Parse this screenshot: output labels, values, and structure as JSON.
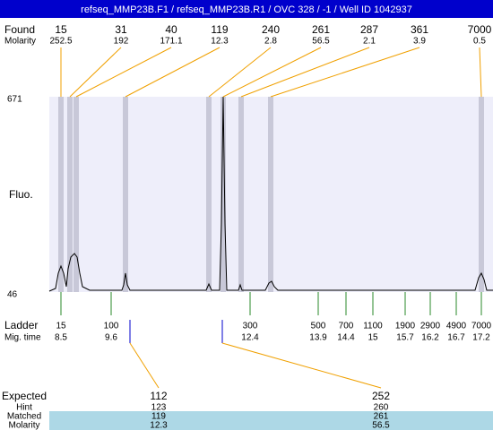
{
  "header": {
    "title": "refseq_MMP23B.F1 / refseq_MMP23B.R1 / OVC 328 / -1 / Well ID 1042937"
  },
  "found": {
    "label": "Found",
    "molarity_label": "Molarity",
    "peaks": [
      {
        "size": 15,
        "molarity": 252.5
      },
      {
        "size": 31,
        "molarity": 192
      },
      {
        "size": 40,
        "molarity": 171.1
      },
      {
        "size": 119,
        "molarity": 12.3
      },
      {
        "size": 240,
        "molarity": 2.8
      },
      {
        "size": 261,
        "molarity": 56.5
      },
      {
        "size": 287,
        "molarity": 2.1
      },
      {
        "size": 361,
        "molarity": 3.9
      },
      {
        "size": 7000,
        "molarity": 0.5
      }
    ]
  },
  "plot": {
    "y_top": 671,
    "y_bottom": 46,
    "y_label": "Fluo."
  },
  "ladder": {
    "label": "Ladder",
    "time_label": "Mig. time",
    "entries": [
      {
        "size": 15,
        "time": 8.5
      },
      {
        "size": 100,
        "time": 9.6
      },
      {
        "size": 300,
        "time": 12.4
      },
      {
        "size": 500,
        "time": 13.9
      },
      {
        "size": 700,
        "time": 14.4
      },
      {
        "size": 1100,
        "time": 15
      },
      {
        "size": 1900,
        "time": 15.7
      },
      {
        "size": 2900,
        "time": 16.2
      },
      {
        "size": 4900,
        "time": 16.7
      },
      {
        "size": 7000,
        "time": 17.2
      }
    ]
  },
  "expected": {
    "labels": [
      "Expected",
      "Hint",
      "Matched",
      "Molarity"
    ],
    "columns": [
      {
        "expected": 112,
        "hint": 123,
        "matched": 119,
        "molarity": 12.3
      },
      {
        "expected": 252,
        "hint": 260,
        "matched": 261,
        "molarity": 56.5
      }
    ]
  }
}
